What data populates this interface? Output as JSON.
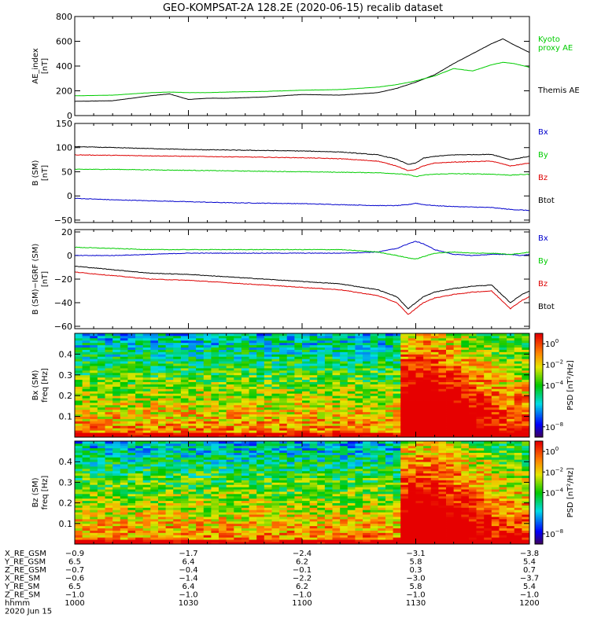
{
  "title": "GEO-KOMPSAT-2A 128.2E (2020-06-15) recalib dataset",
  "x_axis": {
    "tick_labels": [
      "1000",
      "1030",
      "1100",
      "1130",
      "1200"
    ],
    "range_minutes": [
      0,
      120
    ],
    "tick_minutes": [
      0,
      30,
      60,
      90,
      120
    ],
    "minor_tick_step_minutes": 5
  },
  "ephemeris": {
    "rows": [
      {
        "label": "X_RE_GSM",
        "values": [
          "-0.9",
          "-1.7",
          "-2.4",
          "-3.1",
          "-3.8"
        ]
      },
      {
        "label": "Y_RE_GSM",
        "values": [
          "6.5",
          "6.4",
          "6.2",
          "5.8",
          "5.4"
        ]
      },
      {
        "label": "Z_RE_GSM",
        "values": [
          "-0.7",
          "-0.4",
          "-0.1",
          "0.3",
          "0.7"
        ]
      },
      {
        "label": "X_RE_SM",
        "values": [
          "-0.6",
          "-1.4",
          "-2.2",
          "-3.0",
          "-3.7"
        ]
      },
      {
        "label": "Y_RE_SM",
        "values": [
          "6.5",
          "6.4",
          "6.2",
          "5.8",
          "5.4"
        ]
      },
      {
        "label": "Z_RE_SM",
        "values": [
          "-1.0",
          "-1.0",
          "-1.0",
          "-1.0",
          "-1.0"
        ]
      },
      {
        "label": "hhmm",
        "values": [
          "1000",
          "1030",
          "1100",
          "1130",
          "1200"
        ]
      }
    ],
    "date": "2020 Jun 15"
  },
  "colors": {
    "black": "#000000",
    "green": "#00cc00",
    "blue": "#0000cc",
    "red": "#dd0000"
  },
  "chart_data": [
    {
      "type": "line",
      "id": "ae",
      "ylabel": "AE_index\n[nT]",
      "ylim": [
        0,
        800
      ],
      "yticks": [
        0,
        200,
        400,
        600,
        800
      ],
      "ytick_labels": [
        "0",
        "200",
        "400",
        "600",
        "800"
      ],
      "x_minutes": [
        0,
        10,
        20,
        25,
        30,
        35,
        40,
        50,
        60,
        70,
        80,
        85,
        90,
        95,
        100,
        105,
        110,
        113,
        116,
        120
      ],
      "series": [
        {
          "name": "Themis AE",
          "color": "#000000",
          "label_lines": [
            "Themis AE"
          ],
          "values": [
            115,
            120,
            160,
            175,
            130,
            140,
            140,
            150,
            170,
            165,
            185,
            220,
            270,
            330,
            420,
            500,
            580,
            620,
            570,
            510
          ]
        },
        {
          "name": "Kyoto proxy AE",
          "color": "#00cc00",
          "label_lines": [
            "Kyoto",
            "proxy AE"
          ],
          "values": [
            160,
            165,
            185,
            190,
            185,
            185,
            190,
            195,
            205,
            210,
            230,
            250,
            280,
            320,
            380,
            360,
            410,
            430,
            420,
            390
          ]
        }
      ]
    },
    {
      "type": "line",
      "id": "bsm",
      "ylabel": "B (SM)\n[nT]",
      "ylim": [
        -55,
        150
      ],
      "yticks": [
        -50,
        0,
        50,
        100,
        150
      ],
      "ytick_labels": [
        "−50",
        "0",
        "50",
        "100",
        "150"
      ],
      "x_minutes": [
        0,
        10,
        20,
        30,
        40,
        50,
        60,
        70,
        80,
        85,
        88,
        90,
        92,
        95,
        100,
        110,
        115,
        120
      ],
      "series": [
        {
          "name": "Bx",
          "color": "#0000cc",
          "label_lines": [
            "Bx"
          ],
          "values": [
            -5,
            -8,
            -10,
            -12,
            -14,
            -15,
            -16,
            -18,
            -20,
            -20,
            -18,
            -15,
            -18,
            -20,
            -22,
            -24,
            -28,
            -30
          ]
        },
        {
          "name": "By",
          "color": "#00cc00",
          "label_lines": [
            "By"
          ],
          "values": [
            55,
            55,
            54,
            53,
            52,
            51,
            50,
            49,
            48,
            46,
            44,
            40,
            43,
            45,
            46,
            45,
            43,
            45
          ]
        },
        {
          "name": "Bz",
          "color": "#dd0000",
          "label_lines": [
            "Bz"
          ],
          "values": [
            85,
            84,
            83,
            82,
            81,
            80,
            79,
            77,
            72,
            62,
            52,
            55,
            62,
            68,
            70,
            72,
            62,
            68
          ]
        },
        {
          "name": "Btot",
          "color": "#000000",
          "label_lines": [
            "Btot"
          ],
          "values": [
            102,
            100,
            98,
            96,
            95,
            94,
            93,
            91,
            85,
            76,
            65,
            68,
            78,
            82,
            85,
            86,
            75,
            82
          ]
        }
      ]
    },
    {
      "type": "line",
      "id": "bsm_igrf",
      "ylabel": "B (SM)−IGRF (SM)\n[nT]",
      "ylim": [
        -62,
        22
      ],
      "yticks": [
        -60,
        -40,
        -20,
        0,
        20
      ],
      "ytick_labels": [
        "−60",
        "−40",
        "−20",
        "0",
        "20"
      ],
      "x_minutes": [
        0,
        10,
        20,
        30,
        40,
        50,
        60,
        70,
        80,
        85,
        88,
        90,
        92,
        95,
        100,
        105,
        110,
        115,
        118,
        120
      ],
      "series": [
        {
          "name": "Bx",
          "color": "#0000cc",
          "label_lines": [
            "Bx"
          ],
          "values": [
            0,
            0,
            1,
            2,
            2,
            2,
            2,
            2,
            3,
            6,
            10,
            12,
            10,
            5,
            1,
            0,
            1,
            1,
            0,
            1
          ]
        },
        {
          "name": "By",
          "color": "#00cc00",
          "label_lines": [
            "By"
          ],
          "values": [
            7,
            6,
            5,
            5,
            5,
            5,
            5,
            5,
            3,
            0,
            -2,
            -3,
            -1,
            2,
            3,
            2,
            2,
            1,
            2,
            3
          ]
        },
        {
          "name": "Bz",
          "color": "#dd0000",
          "label_lines": [
            "Bz"
          ],
          "values": [
            -14,
            -17,
            -20,
            -21,
            -23,
            -25,
            -27,
            -29,
            -34,
            -40,
            -50,
            -45,
            -40,
            -36,
            -33,
            -31,
            -30,
            -45,
            -38,
            -35
          ]
        },
        {
          "name": "Btot",
          "color": "#000000",
          "label_lines": [
            "Btot"
          ],
          "values": [
            -9,
            -12,
            -15,
            -16,
            -18,
            -20,
            -22,
            -24,
            -29,
            -35,
            -45,
            -40,
            -35,
            -31,
            -28,
            -26,
            -25,
            -40,
            -33,
            -30
          ]
        }
      ]
    },
    {
      "type": "heatmap",
      "id": "spec_bx",
      "ylabel": "Bx (SM)\nfreq [Hz]",
      "ylim": [
        0,
        0.5
      ],
      "yticks": [
        0.1,
        0.2,
        0.3,
        0.4
      ],
      "ytick_labels": [
        "0.1",
        "0.2",
        "0.3",
        "0.4"
      ],
      "colorbar": {
        "label": "PSD [nT²/Hz]",
        "log_range": [
          -9,
          1
        ],
        "ticks": [
          0,
          -2,
          -4,
          -8
        ]
      },
      "scale": 1.0
    },
    {
      "type": "heatmap",
      "id": "spec_bz",
      "ylabel": "Bz (SM)\nfreq [Hz]",
      "ylim": [
        0,
        0.5
      ],
      "yticks": [
        0.1,
        0.2,
        0.3,
        0.4
      ],
      "ytick_labels": [
        "0.1",
        "0.2",
        "0.3",
        "0.4"
      ],
      "colorbar": {
        "label": "PSD [nT²/Hz]",
        "log_range": [
          -9,
          1
        ],
        "ticks": [
          0,
          -2,
          -4,
          -8
        ]
      },
      "scale": 0.85
    }
  ]
}
